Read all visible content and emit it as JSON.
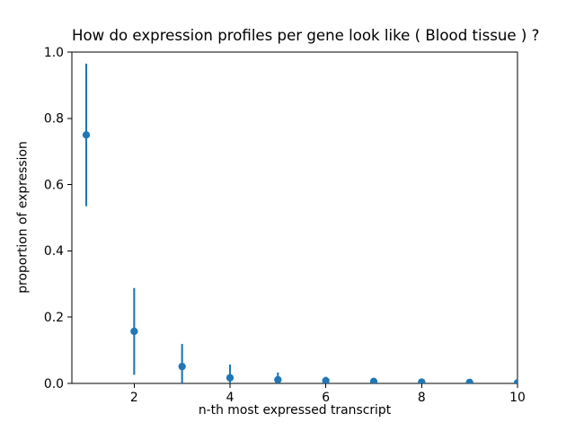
{
  "chart_data": {
    "type": "scatter",
    "title": "How do expression profiles per gene look like ( Blood tissue ) ?",
    "xlabel": "n-th most expressed transcript",
    "ylabel": "proportion of expression",
    "x": [
      1,
      2,
      3,
      4,
      5,
      6,
      7,
      8,
      9,
      10
    ],
    "y": [
      0.75,
      0.157,
      0.051,
      0.017,
      0.011,
      0.008,
      0.006,
      0.004,
      0.003,
      0.002
    ],
    "yerr": [
      0.215,
      0.131,
      0.068,
      0.04,
      0.022,
      0.012,
      0.008,
      0.006,
      0.004,
      0.003
    ],
    "xlim": [
      0.7,
      10
    ],
    "ylim": [
      0,
      1.0
    ],
    "xticks": [
      2,
      4,
      6,
      8,
      10
    ],
    "xticklabels": [
      "2",
      "4",
      "6",
      "8",
      "10"
    ],
    "yticks": [
      0,
      0.2,
      0.4,
      0.6,
      0.8,
      1.0
    ],
    "yticklabels": [
      "0.0",
      "0.2",
      "0.4",
      "0.6",
      "0.8",
      "1.0"
    ],
    "grid": false,
    "legend": null,
    "marker": "o",
    "marker_color": "#1f77b4",
    "errorbar_color": "#1f77b4",
    "axis_color": "#000000",
    "background_color": "#ffffff",
    "error_bars_clipped_at_zero": true
  }
}
